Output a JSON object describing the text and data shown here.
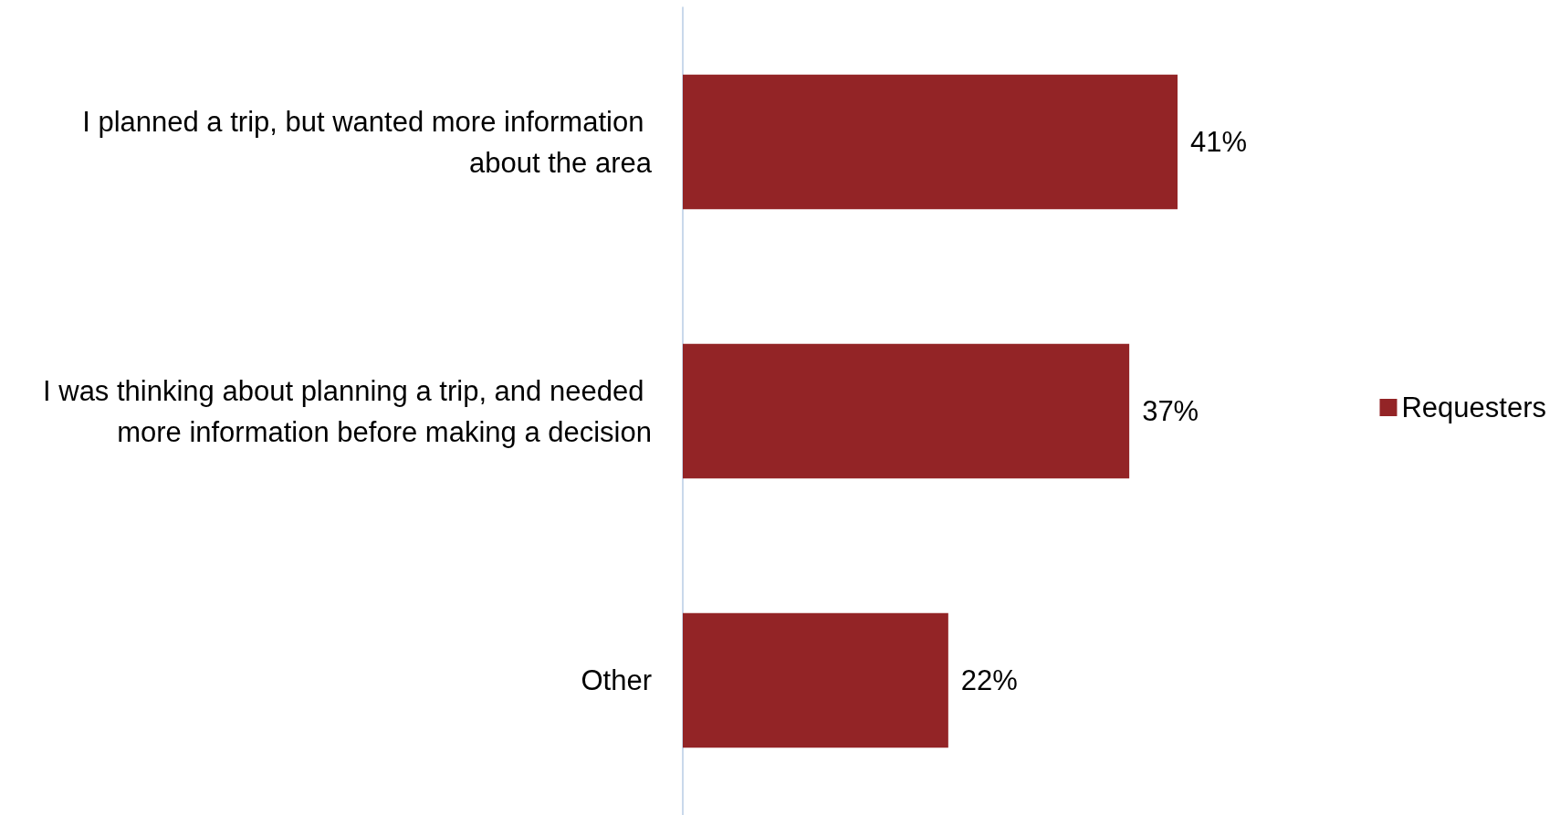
{
  "chart_data": {
    "type": "bar",
    "orientation": "horizontal",
    "categories": [
      "I planned a trip, but wanted more information about the area",
      "I was thinking about planning a trip, and needed more information before making a decision",
      "Other"
    ],
    "series": [
      {
        "name": "Requesters",
        "color": "#932426",
        "values": [
          41,
          37,
          22
        ],
        "value_labels": [
          "41%",
          "37%",
          "22%"
        ]
      }
    ],
    "legend": "right",
    "grid": false
  }
}
